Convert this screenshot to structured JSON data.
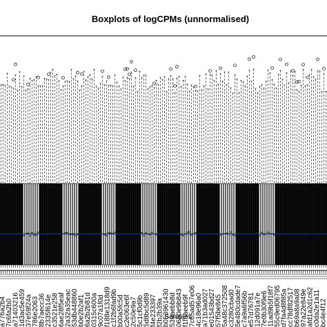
{
  "chart_data": {
    "type": "box",
    "title": "Boxplots of logCPMs (unnormalised)",
    "xlabel": "Samples",
    "ylabel": "",
    "median_line_color": "#1f2f8f",
    "visible_tick_labels": [
      "a776a2b4",
      "7c6fa2b0",
      "a71403216",
      "1d3ac5e459",
      "37e59f24a",
      "786e2063",
      "8b7aecc36",
      "2335f614e",
      "c3521e258",
      "6ae28f5eaf",
      "2a32a35eac",
      "53db448860",
      "b0e2b2af1",
      "6a2b2b81d",
      "0315c600a",
      "9c07a1f0d",
      "f188e1318d9",
      "c1f2b6fad9b",
      "b00a5fc5d",
      "c2e063e6f",
      "2c50e9a7",
      "5c1cf0d9b",
      "5d8bc5d89",
      "f4e233397",
      "f2b2b39a",
      "b053961430",
      "539aebb8d",
      "0650e9b843",
      "f1f5aeeb9f",
      "7c65ad57e06",
      "4c18e96a0",
      "a71b3ad027",
      "e01543bd27",
      "57f5be845",
      "5a48c372508",
      "c3280cbad0",
      "5e480cdade7",
      "c7a9a6f56b",
      "e57d76781",
      "12d091a7e",
      "7e0b30f9e6",
      "11ad9b5f18f7",
      "55c9ed06795",
      "d7fa4d8f85a",
      "cc78df82517",
      "b69a8a9a08",
      "97a22e849e",
      "afd1a2d1c62",
      "c0da2e1a11",
      "bc4e4f12"
    ]
  }
}
